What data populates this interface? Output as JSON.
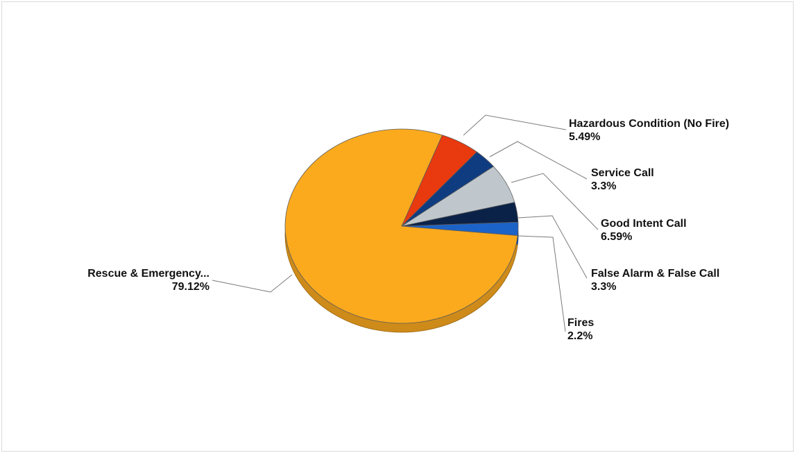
{
  "chart_data": {
    "type": "pie",
    "categories": [
      "Hazardous Condition (No Fire)",
      "Service Call",
      "Good Intent Call",
      "False Alarm & False Call",
      "Fires",
      "Rescue & Emergency..."
    ],
    "values": [
      5.49,
      3.3,
      6.59,
      3.3,
      2.2,
      79.12
    ],
    "percent_labels": [
      "5.49%",
      "3.3%",
      "6.59%",
      "3.3%",
      "2.2%",
      "79.12%"
    ],
    "colors": [
      "#e8390f",
      "#0f3c80",
      "#bfc7cc",
      "#0b2248",
      "#1c63c8",
      "#fbaa1e"
    ],
    "label_style": "callout-leader-lines",
    "legend": "none",
    "three_d": true
  }
}
